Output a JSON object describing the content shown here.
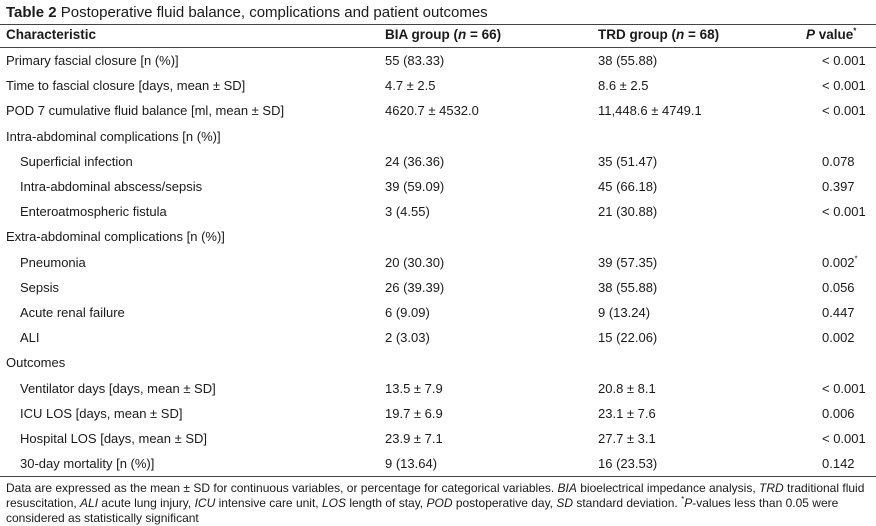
{
  "caption": {
    "label": "Table 2",
    "title": "Postoperative fluid balance, complications and patient outcomes"
  },
  "headers": {
    "characteristic": "Characteristic",
    "bia_pre": "BIA group (",
    "bia_n": "n",
    "bia_post": " = 66)",
    "trd_pre": "TRD group (",
    "trd_n": "n",
    "trd_post": " = 68)",
    "p_label": "P",
    "p_rest": " value",
    "p_mark": "*"
  },
  "rows": [
    {
      "label": "Primary fascial closure [n (%)]",
      "indent": false,
      "bia": "55 (83.33)",
      "trd": "38 (55.88)",
      "p": "< 0.001",
      "mark": ""
    },
    {
      "label": "Time to fascial closure [days, mean ± SD]",
      "indent": false,
      "bia": "4.7 ± 2.5",
      "trd": "8.6 ± 2.5",
      "p": "< 0.001",
      "mark": ""
    },
    {
      "label": "POD 7 cumulative fluid balance [ml, mean ± SD]",
      "indent": false,
      "bia": "4620.7 ± 4532.0",
      "trd": "11,448.6 ± 4749.1",
      "p": "< 0.001",
      "mark": ""
    },
    {
      "label": "Intra-abdominal complications [n (%)]",
      "indent": false,
      "bia": "",
      "trd": "",
      "p": "",
      "mark": ""
    },
    {
      "label": "Superficial infection",
      "indent": true,
      "bia": "24 (36.36)",
      "trd": "35 (51.47)",
      "p": "0.078",
      "mark": ""
    },
    {
      "label": "Intra-abdominal abscess/sepsis",
      "indent": true,
      "bia": "39 (59.09)",
      "trd": "45 (66.18)",
      "p": "0.397",
      "mark": ""
    },
    {
      "label": "Enteroatmospheric fistula",
      "indent": true,
      "bia": "3 (4.55)",
      "trd": "21 (30.88)",
      "p": "< 0.001",
      "mark": ""
    },
    {
      "label": "Extra-abdominal complications [n (%)]",
      "indent": false,
      "bia": "",
      "trd": "",
      "p": "",
      "mark": ""
    },
    {
      "label": "Pneumonia",
      "indent": true,
      "bia": "20 (30.30)",
      "trd": "39 (57.35)",
      "p": "0.002",
      "mark": "*"
    },
    {
      "label": "Sepsis",
      "indent": true,
      "bia": "26 (39.39)",
      "trd": "38 (55.88)",
      "p": "0.056",
      "mark": ""
    },
    {
      "label": "Acute renal failure",
      "indent": true,
      "bia": "6 (9.09)",
      "trd": "9 (13.24)",
      "p": "0.447",
      "mark": ""
    },
    {
      "label": "ALI",
      "indent": true,
      "bia": "2 (3.03)",
      "trd": "15 (22.06)",
      "p": "0.002",
      "mark": ""
    },
    {
      "label": "Outcomes",
      "indent": false,
      "bia": "",
      "trd": "",
      "p": "",
      "mark": ""
    },
    {
      "label": "Ventilator days [days, mean ± SD]",
      "indent": true,
      "bia": "13.5 ± 7.9",
      "trd": "20.8 ± 8.1",
      "p": "< 0.001",
      "mark": ""
    },
    {
      "label": "ICU LOS [days, mean ± SD]",
      "indent": true,
      "bia": "19.7 ± 6.9",
      "trd": "23.1 ± 7.6",
      "p": "0.006",
      "mark": ""
    },
    {
      "label": "Hospital LOS [days, mean ± SD]",
      "indent": true,
      "bia": "23.9 ± 7.1",
      "trd": "27.7 ± 3.1",
      "p": "< 0.001",
      "mark": ""
    },
    {
      "label": "30-day mortality [n (%)]",
      "indent": true,
      "bia": "9 (13.64)",
      "trd": "16 (23.53)",
      "p": "0.142",
      "mark": ""
    }
  ],
  "footnote": {
    "p1": "Data are expressed as the mean ± SD for continuous variables, or percentage for categorical variables. ",
    "bia": "BIA",
    "p2": " bioelectrical impedance analysis, ",
    "trd": "TRD",
    "p3": " traditional fluid resuscitation, ",
    "ali": "ALI",
    "p4": " acute lung injury, ",
    "icu": "ICU",
    "p5": " intensive care unit, ",
    "los": "LOS",
    "p6": " length of stay, ",
    "pod": "POD",
    "p7": " postoperative day, ",
    "sd": "SD",
    "p8": " standard deviation. ",
    "mark": "*",
    "pv": "P",
    "p9": "-values less than 0.05 were considered as statistically significant"
  }
}
